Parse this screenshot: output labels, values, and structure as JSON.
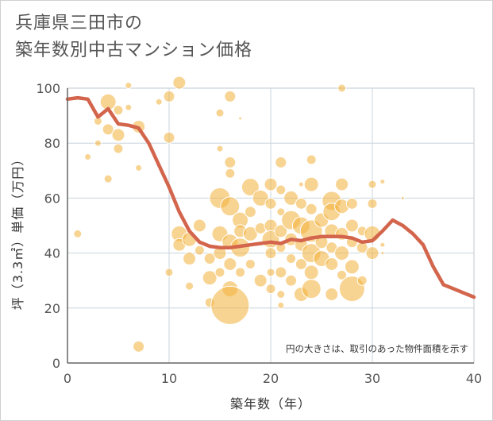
{
  "title": {
    "line1": "兵庫県三田市の",
    "line2": "築年数別中古マンション価格"
  },
  "chart_data": {
    "type": "scatter",
    "xlabel": "築年数（年）",
    "ylabel": "坪（3.3㎡）単価（万円）",
    "xlim": [
      0,
      40
    ],
    "ylim": [
      0,
      100
    ],
    "x_ticks": [
      "0",
      "10",
      "20",
      "30",
      "40"
    ],
    "y_ticks": [
      "0",
      "20",
      "40",
      "60",
      "80",
      "100"
    ],
    "grid": true,
    "note": "円の大きさは、取引のあった物件面積を示す",
    "colors": {
      "bubble_fill": "#f2b13b",
      "bubble_stroke": "#ffffff",
      "line": "#d4654d",
      "grid": "#c8d4dc",
      "plot_border": "#bfc9d0"
    },
    "series": [
      {
        "type": "bubble",
        "points": [
          {
            "x": 1,
            "y": 47,
            "s": 5
          },
          {
            "x": 2,
            "y": 75,
            "s": 4
          },
          {
            "x": 3,
            "y": 80,
            "s": 4
          },
          {
            "x": 3,
            "y": 88,
            "s": 5
          },
          {
            "x": 4,
            "y": 95,
            "s": 10
          },
          {
            "x": 4,
            "y": 85,
            "s": 7
          },
          {
            "x": 4,
            "y": 67,
            "s": 5
          },
          {
            "x": 5,
            "y": 92,
            "s": 6
          },
          {
            "x": 5,
            "y": 83,
            "s": 8
          },
          {
            "x": 5,
            "y": 78,
            "s": 6
          },
          {
            "x": 6,
            "y": 101,
            "s": 4
          },
          {
            "x": 6,
            "y": 93,
            "s": 4
          },
          {
            "x": 7,
            "y": 86,
            "s": 8
          },
          {
            "x": 7,
            "y": 71,
            "s": 4
          },
          {
            "x": 7,
            "y": 6,
            "s": 7
          },
          {
            "x": 9,
            "y": 95,
            "s": 4
          },
          {
            "x": 10,
            "y": 97,
            "s": 7
          },
          {
            "x": 10,
            "y": 82,
            "s": 7
          },
          {
            "x": 10,
            "y": 33,
            "s": 5
          },
          {
            "x": 11,
            "y": 102,
            "s": 8
          },
          {
            "x": 11,
            "y": 47,
            "s": 10
          },
          {
            "x": 11,
            "y": 43,
            "s": 8
          },
          {
            "x": 12,
            "y": 45,
            "s": 9
          },
          {
            "x": 12,
            "y": 38,
            "s": 8
          },
          {
            "x": 12,
            "y": 28,
            "s": 5
          },
          {
            "x": 13,
            "y": 50,
            "s": 8
          },
          {
            "x": 13,
            "y": 41,
            "s": 6
          },
          {
            "x": 14,
            "y": 38,
            "s": 7
          },
          {
            "x": 14,
            "y": 31,
            "s": 9
          },
          {
            "x": 14,
            "y": 22,
            "s": 6
          },
          {
            "x": 15,
            "y": 91,
            "s": 5
          },
          {
            "x": 15,
            "y": 78,
            "s": 4
          },
          {
            "x": 15,
            "y": 60,
            "s": 13
          },
          {
            "x": 15,
            "y": 47,
            "s": 10
          },
          {
            "x": 15,
            "y": 40,
            "s": 8
          },
          {
            "x": 15,
            "y": 33,
            "s": 6
          },
          {
            "x": 16,
            "y": 97,
            "s": 7
          },
          {
            "x": 16,
            "y": 73,
            "s": 7
          },
          {
            "x": 16,
            "y": 69,
            "s": 6
          },
          {
            "x": 16,
            "y": 57,
            "s": 12
          },
          {
            "x": 16,
            "y": 44,
            "s": 10
          },
          {
            "x": 16,
            "y": 36,
            "s": 8
          },
          {
            "x": 16,
            "y": 27,
            "s": 10
          },
          {
            "x": 16,
            "y": 21,
            "s": 24
          },
          {
            "x": 17,
            "y": 89,
            "s": 2
          },
          {
            "x": 17,
            "y": 52,
            "s": 10
          },
          {
            "x": 17,
            "y": 48,
            "s": 8
          },
          {
            "x": 17,
            "y": 42,
            "s": 12
          },
          {
            "x": 17,
            "y": 33,
            "s": 6
          },
          {
            "x": 18,
            "y": 64,
            "s": 11
          },
          {
            "x": 18,
            "y": 55,
            "s": 7
          },
          {
            "x": 18,
            "y": 47,
            "s": 9
          },
          {
            "x": 18,
            "y": 36,
            "s": 6
          },
          {
            "x": 19,
            "y": 60,
            "s": 10
          },
          {
            "x": 19,
            "y": 49,
            "s": 7
          },
          {
            "x": 19,
            "y": 30,
            "s": 8
          },
          {
            "x": 20,
            "y": 65,
            "s": 8
          },
          {
            "x": 20,
            "y": 58,
            "s": 7
          },
          {
            "x": 20,
            "y": 50,
            "s": 8
          },
          {
            "x": 20,
            "y": 45,
            "s": 11
          },
          {
            "x": 20,
            "y": 40,
            "s": 7
          },
          {
            "x": 20,
            "y": 33,
            "s": 5
          },
          {
            "x": 20,
            "y": 27,
            "s": 6
          },
          {
            "x": 21,
            "y": 73,
            "s": 7
          },
          {
            "x": 21,
            "y": 63,
            "s": 6
          },
          {
            "x": 21,
            "y": 55,
            "s": 5
          },
          {
            "x": 21,
            "y": 48,
            "s": 8
          },
          {
            "x": 21,
            "y": 42,
            "s": 6
          },
          {
            "x": 21,
            "y": 33,
            "s": 7
          },
          {
            "x": 21,
            "y": 25,
            "s": 5
          },
          {
            "x": 21,
            "y": 21,
            "s": 4
          },
          {
            "x": 22,
            "y": 60,
            "s": 9
          },
          {
            "x": 22,
            "y": 52,
            "s": 12
          },
          {
            "x": 22,
            "y": 45,
            "s": 8
          },
          {
            "x": 22,
            "y": 38,
            "s": 6
          },
          {
            "x": 22,
            "y": 30,
            "s": 7
          },
          {
            "x": 23,
            "y": 65,
            "s": 3
          },
          {
            "x": 23,
            "y": 58,
            "s": 7
          },
          {
            "x": 23,
            "y": 50,
            "s": 11
          },
          {
            "x": 23,
            "y": 43,
            "s": 8
          },
          {
            "x": 23,
            "y": 36,
            "s": 7
          },
          {
            "x": 23,
            "y": 25,
            "s": 9
          },
          {
            "x": 24,
            "y": 74,
            "s": 6
          },
          {
            "x": 24,
            "y": 65,
            "s": 9
          },
          {
            "x": 24,
            "y": 56,
            "s": 7
          },
          {
            "x": 24,
            "y": 48,
            "s": 14
          },
          {
            "x": 24,
            "y": 40,
            "s": 12
          },
          {
            "x": 24,
            "y": 33,
            "s": 9
          },
          {
            "x": 24,
            "y": 27,
            "s": 12
          },
          {
            "x": 25,
            "y": 52,
            "s": 9
          },
          {
            "x": 25,
            "y": 44,
            "s": 8
          },
          {
            "x": 25,
            "y": 38,
            "s": 10
          },
          {
            "x": 26,
            "y": 59,
            "s": 12
          },
          {
            "x": 26,
            "y": 55,
            "s": 11
          },
          {
            "x": 26,
            "y": 48,
            "s": 9
          },
          {
            "x": 26,
            "y": 42,
            "s": 7
          },
          {
            "x": 26,
            "y": 36,
            "s": 8
          },
          {
            "x": 26,
            "y": 25,
            "s": 8
          },
          {
            "x": 27,
            "y": 100,
            "s": 5
          },
          {
            "x": 27,
            "y": 65,
            "s": 8
          },
          {
            "x": 27,
            "y": 57,
            "s": 9
          },
          {
            "x": 27,
            "y": 47,
            "s": 8
          },
          {
            "x": 27,
            "y": 40,
            "s": 9
          },
          {
            "x": 27,
            "y": 32,
            "s": 6
          },
          {
            "x": 28,
            "y": 58,
            "s": 7
          },
          {
            "x": 28,
            "y": 50,
            "s": 8
          },
          {
            "x": 28,
            "y": 44,
            "s": 7
          },
          {
            "x": 28,
            "y": 35,
            "s": 9
          },
          {
            "x": 28,
            "y": 27,
            "s": 16
          },
          {
            "x": 29,
            "y": 48,
            "s": 6
          },
          {
            "x": 29,
            "y": 42,
            "s": 7
          },
          {
            "x": 29,
            "y": 30,
            "s": 6
          },
          {
            "x": 30,
            "y": 65,
            "s": 5
          },
          {
            "x": 30,
            "y": 58,
            "s": 6
          },
          {
            "x": 30,
            "y": 47,
            "s": 10
          },
          {
            "x": 30,
            "y": 40,
            "s": 8
          },
          {
            "x": 31,
            "y": 66,
            "s": 3
          },
          {
            "x": 31,
            "y": 43,
            "s": 3
          },
          {
            "x": 31,
            "y": 40,
            "s": 2
          },
          {
            "x": 33,
            "y": 60,
            "s": 2
          }
        ]
      },
      {
        "type": "line",
        "x": [
          0,
          1,
          2,
          3,
          4,
          5,
          6,
          7,
          8,
          9,
          10,
          11,
          12,
          13,
          14,
          15,
          16,
          17,
          18,
          19,
          20,
          21,
          22,
          23,
          24,
          25,
          26,
          27,
          28,
          29,
          30,
          31,
          32,
          33,
          34,
          35,
          36,
          37,
          38,
          39,
          40
        ],
        "values": [
          96,
          96.5,
          96,
          89.5,
          92.5,
          87,
          86.5,
          85.5,
          80,
          72,
          64,
          55,
          48,
          44,
          42.5,
          42,
          42,
          42.5,
          43,
          43.5,
          44,
          43.5,
          45,
          44.5,
          45.5,
          46,
          46,
          46,
          45.5,
          44,
          44.5,
          48,
          52,
          50,
          47,
          43,
          35,
          28.5,
          27,
          25.5,
          24
        ]
      }
    ]
  }
}
